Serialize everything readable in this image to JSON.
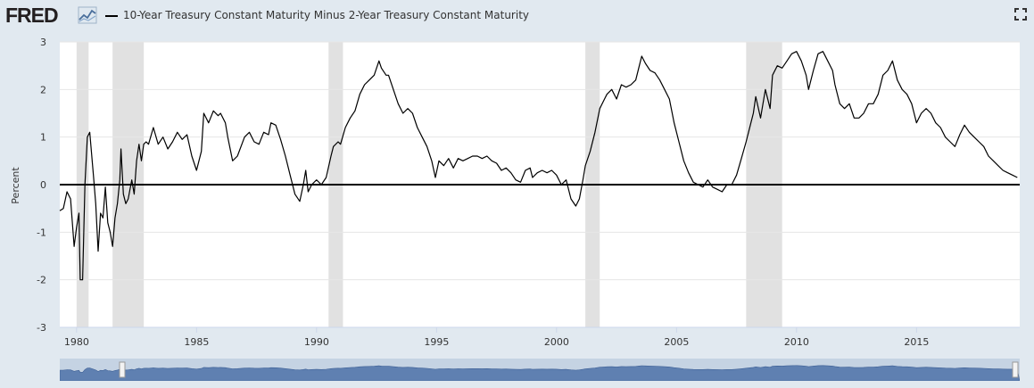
{
  "header": {
    "logo": "FRED",
    "series_title": "10-Year Treasury Constant Maturity Minus 2-Year Treasury Constant Maturity"
  },
  "icons": {
    "logo_mark": "chart-line-icon",
    "fullscreen": "fullscreen-icon"
  },
  "colors": {
    "line": "#000000",
    "recession": "#e1e1e1",
    "grid": "#e6e6e6",
    "navigator_fill": "#5f80b1",
    "navigator_bg": "#c5d3e3"
  },
  "chart_data": {
    "type": "line",
    "ylabel": "Percent",
    "ylim": [
      -3,
      3
    ],
    "xlim": [
      1979.3,
      2019.3
    ],
    "yticks": [
      3,
      2,
      1,
      0,
      -1,
      -2,
      -3
    ],
    "xticks": [
      1980,
      1985,
      1990,
      1995,
      2000,
      2005,
      2010,
      2015
    ],
    "grid": "horizontal",
    "zero_line": true,
    "recessions": [
      [
        1980.0,
        1980.5
      ],
      [
        1981.5,
        1982.8
      ],
      [
        1990.5,
        1991.1
      ],
      [
        2001.2,
        2001.8
      ],
      [
        2007.9,
        2009.4
      ]
    ],
    "series": [
      {
        "values": [
          [
            1979.3,
            -0.55
          ],
          [
            1979.45,
            -0.5
          ],
          [
            1979.6,
            -0.15
          ],
          [
            1979.75,
            -0.3
          ],
          [
            1979.9,
            -1.3
          ],
          [
            1980.0,
            -0.9
          ],
          [
            1980.1,
            -0.6
          ],
          [
            1980.15,
            -2.0
          ],
          [
            1980.25,
            -2.0
          ],
          [
            1980.35,
            0.0
          ],
          [
            1980.45,
            1.0
          ],
          [
            1980.55,
            1.1
          ],
          [
            1980.7,
            0.2
          ],
          [
            1980.8,
            -0.4
          ],
          [
            1980.9,
            -1.4
          ],
          [
            1981.0,
            -0.6
          ],
          [
            1981.1,
            -0.7
          ],
          [
            1981.2,
            -0.05
          ],
          [
            1981.3,
            -0.8
          ],
          [
            1981.4,
            -1.0
          ],
          [
            1981.5,
            -1.3
          ],
          [
            1981.6,
            -0.7
          ],
          [
            1981.7,
            -0.4
          ],
          [
            1981.8,
            0.1
          ],
          [
            1981.85,
            0.75
          ],
          [
            1981.95,
            -0.2
          ],
          [
            1982.05,
            -0.4
          ],
          [
            1982.15,
            -0.3
          ],
          [
            1982.3,
            0.1
          ],
          [
            1982.4,
            -0.2
          ],
          [
            1982.5,
            0.5
          ],
          [
            1982.6,
            0.85
          ],
          [
            1982.7,
            0.5
          ],
          [
            1982.8,
            0.85
          ],
          [
            1982.9,
            0.9
          ],
          [
            1983.0,
            0.85
          ],
          [
            1983.2,
            1.2
          ],
          [
            1983.4,
            0.85
          ],
          [
            1983.6,
            1.0
          ],
          [
            1983.8,
            0.75
          ],
          [
            1984.0,
            0.9
          ],
          [
            1984.2,
            1.1
          ],
          [
            1984.4,
            0.95
          ],
          [
            1984.6,
            1.05
          ],
          [
            1984.8,
            0.6
          ],
          [
            1985.0,
            0.3
          ],
          [
            1985.2,
            0.7
          ],
          [
            1985.3,
            1.5
          ],
          [
            1985.5,
            1.3
          ],
          [
            1985.7,
            1.55
          ],
          [
            1985.9,
            1.45
          ],
          [
            1986.0,
            1.5
          ],
          [
            1986.2,
            1.3
          ],
          [
            1986.3,
            1.0
          ],
          [
            1986.5,
            0.5
          ],
          [
            1986.7,
            0.6
          ],
          [
            1987.0,
            1.0
          ],
          [
            1987.2,
            1.1
          ],
          [
            1987.4,
            0.9
          ],
          [
            1987.6,
            0.85
          ],
          [
            1987.8,
            1.1
          ],
          [
            1988.0,
            1.05
          ],
          [
            1988.1,
            1.3
          ],
          [
            1988.3,
            1.25
          ],
          [
            1988.5,
            0.95
          ],
          [
            1988.7,
            0.6
          ],
          [
            1988.9,
            0.2
          ],
          [
            1989.1,
            -0.2
          ],
          [
            1989.3,
            -0.35
          ],
          [
            1989.45,
            0.0
          ],
          [
            1989.55,
            0.3
          ],
          [
            1989.65,
            -0.15
          ],
          [
            1989.8,
            0.0
          ],
          [
            1990.0,
            0.1
          ],
          [
            1990.2,
            0.0
          ],
          [
            1990.4,
            0.15
          ],
          [
            1990.6,
            0.6
          ],
          [
            1990.7,
            0.8
          ],
          [
            1990.9,
            0.9
          ],
          [
            1991.0,
            0.85
          ],
          [
            1991.2,
            1.2
          ],
          [
            1991.4,
            1.4
          ],
          [
            1991.6,
            1.55
          ],
          [
            1991.8,
            1.9
          ],
          [
            1992.0,
            2.1
          ],
          [
            1992.2,
            2.2
          ],
          [
            1992.4,
            2.3
          ],
          [
            1992.6,
            2.6
          ],
          [
            1992.7,
            2.45
          ],
          [
            1992.9,
            2.3
          ],
          [
            1993.0,
            2.3
          ],
          [
            1993.2,
            2.0
          ],
          [
            1993.4,
            1.7
          ],
          [
            1993.6,
            1.5
          ],
          [
            1993.8,
            1.6
          ],
          [
            1994.0,
            1.5
          ],
          [
            1994.2,
            1.2
          ],
          [
            1994.4,
            1.0
          ],
          [
            1994.6,
            0.8
          ],
          [
            1994.8,
            0.5
          ],
          [
            1994.95,
            0.15
          ],
          [
            1995.1,
            0.5
          ],
          [
            1995.3,
            0.4
          ],
          [
            1995.5,
            0.55
          ],
          [
            1995.7,
            0.35
          ],
          [
            1995.9,
            0.55
          ],
          [
            1996.1,
            0.5
          ],
          [
            1996.3,
            0.55
          ],
          [
            1996.5,
            0.6
          ],
          [
            1996.7,
            0.6
          ],
          [
            1996.9,
            0.55
          ],
          [
            1997.1,
            0.6
          ],
          [
            1997.3,
            0.5
          ],
          [
            1997.5,
            0.45
          ],
          [
            1997.7,
            0.3
          ],
          [
            1997.9,
            0.35
          ],
          [
            1998.1,
            0.25
          ],
          [
            1998.3,
            0.1
          ],
          [
            1998.5,
            0.05
          ],
          [
            1998.7,
            0.3
          ],
          [
            1998.9,
            0.35
          ],
          [
            1999.0,
            0.15
          ],
          [
            1999.2,
            0.25
          ],
          [
            1999.4,
            0.3
          ],
          [
            1999.6,
            0.25
          ],
          [
            1999.8,
            0.3
          ],
          [
            2000.0,
            0.2
          ],
          [
            2000.2,
            0.0
          ],
          [
            2000.4,
            0.1
          ],
          [
            2000.6,
            -0.3
          ],
          [
            2000.8,
            -0.45
          ],
          [
            2000.95,
            -0.3
          ],
          [
            2001.1,
            0.1
          ],
          [
            2001.2,
            0.4
          ],
          [
            2001.4,
            0.7
          ],
          [
            2001.6,
            1.1
          ],
          [
            2001.8,
            1.6
          ],
          [
            2002.0,
            1.8
          ],
          [
            2002.1,
            1.9
          ],
          [
            2002.3,
            2.0
          ],
          [
            2002.5,
            1.8
          ],
          [
            2002.7,
            2.1
          ],
          [
            2002.9,
            2.05
          ],
          [
            2003.1,
            2.1
          ],
          [
            2003.3,
            2.2
          ],
          [
            2003.45,
            2.5
          ],
          [
            2003.55,
            2.7
          ],
          [
            2003.7,
            2.55
          ],
          [
            2003.9,
            2.4
          ],
          [
            2004.1,
            2.35
          ],
          [
            2004.3,
            2.2
          ],
          [
            2004.5,
            2.0
          ],
          [
            2004.7,
            1.8
          ],
          [
            2004.9,
            1.3
          ],
          [
            2005.1,
            0.9
          ],
          [
            2005.3,
            0.5
          ],
          [
            2005.5,
            0.25
          ],
          [
            2005.7,
            0.05
          ],
          [
            2005.9,
            0.0
          ],
          [
            2006.1,
            -0.05
          ],
          [
            2006.3,
            0.1
          ],
          [
            2006.5,
            -0.05
          ],
          [
            2006.7,
            -0.1
          ],
          [
            2006.9,
            -0.15
          ],
          [
            2007.1,
            0.0
          ],
          [
            2007.3,
            0.0
          ],
          [
            2007.5,
            0.2
          ],
          [
            2007.7,
            0.55
          ],
          [
            2007.9,
            0.9
          ],
          [
            2008.1,
            1.3
          ],
          [
            2008.2,
            1.5
          ],
          [
            2008.3,
            1.85
          ],
          [
            2008.5,
            1.4
          ],
          [
            2008.7,
            2.0
          ],
          [
            2008.9,
            1.6
          ],
          [
            2009.0,
            2.3
          ],
          [
            2009.2,
            2.5
          ],
          [
            2009.4,
            2.45
          ],
          [
            2009.6,
            2.6
          ],
          [
            2009.8,
            2.75
          ],
          [
            2010.0,
            2.8
          ],
          [
            2010.2,
            2.6
          ],
          [
            2010.4,
            2.3
          ],
          [
            2010.5,
            2.0
          ],
          [
            2010.7,
            2.4
          ],
          [
            2010.9,
            2.75
          ],
          [
            2011.1,
            2.8
          ],
          [
            2011.3,
            2.6
          ],
          [
            2011.5,
            2.4
          ],
          [
            2011.6,
            2.1
          ],
          [
            2011.8,
            1.7
          ],
          [
            2012.0,
            1.6
          ],
          [
            2012.2,
            1.7
          ],
          [
            2012.4,
            1.4
          ],
          [
            2012.6,
            1.4
          ],
          [
            2012.8,
            1.5
          ],
          [
            2013.0,
            1.7
          ],
          [
            2013.2,
            1.7
          ],
          [
            2013.4,
            1.9
          ],
          [
            2013.6,
            2.3
          ],
          [
            2013.8,
            2.4
          ],
          [
            2014.0,
            2.6
          ],
          [
            2014.2,
            2.2
          ],
          [
            2014.4,
            2.0
          ],
          [
            2014.6,
            1.9
          ],
          [
            2014.8,
            1.7
          ],
          [
            2015.0,
            1.3
          ],
          [
            2015.2,
            1.5
          ],
          [
            2015.4,
            1.6
          ],
          [
            2015.6,
            1.5
          ],
          [
            2015.8,
            1.3
          ],
          [
            2016.0,
            1.2
          ],
          [
            2016.2,
            1.0
          ],
          [
            2016.4,
            0.9
          ],
          [
            2016.6,
            0.8
          ],
          [
            2016.8,
            1.05
          ],
          [
            2017.0,
            1.25
          ],
          [
            2017.2,
            1.1
          ],
          [
            2017.4,
            1.0
          ],
          [
            2017.6,
            0.9
          ],
          [
            2017.8,
            0.8
          ],
          [
            2018.0,
            0.6
          ],
          [
            2018.2,
            0.5
          ],
          [
            2018.4,
            0.4
          ],
          [
            2018.6,
            0.3
          ],
          [
            2018.8,
            0.25
          ],
          [
            2019.0,
            0.2
          ],
          [
            2019.2,
            0.15
          ]
        ]
      }
    ]
  }
}
